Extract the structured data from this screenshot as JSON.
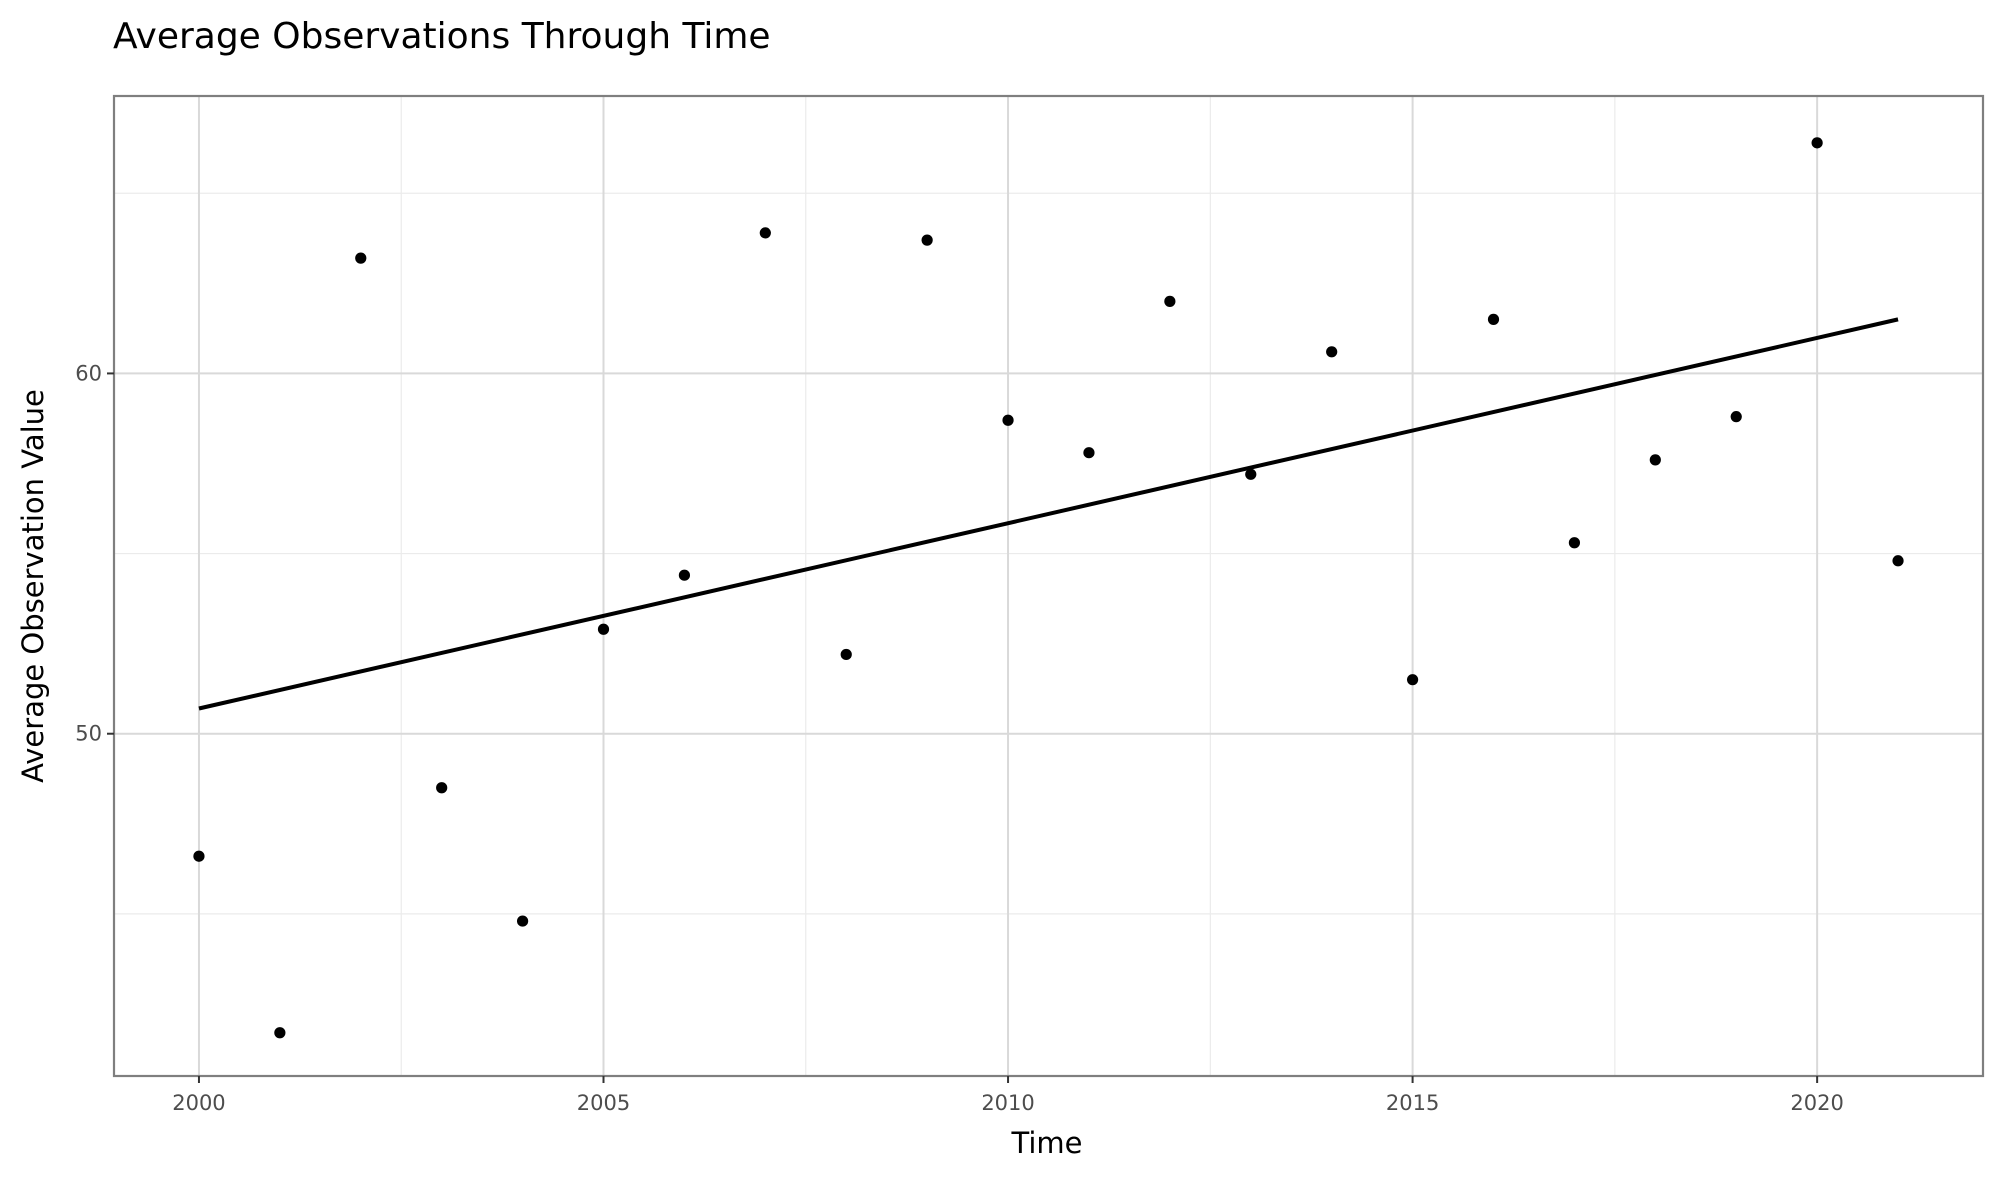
{
  "chart_data": {
    "type": "scatter",
    "title": "Average Observations Through Time",
    "xlabel": "Time",
    "ylabel": "Average Observation Value",
    "xlim": [
      1998.95,
      2022.05
    ],
    "ylim": [
      40.5,
      67.7
    ],
    "x_ticks": [
      2000,
      2005,
      2010,
      2015,
      2020
    ],
    "x_tick_labels": [
      "2000",
      "2005",
      "2010",
      "2015",
      "2020"
    ],
    "x_minor_ticks": [
      2002.5,
      2007.5,
      2012.5,
      2017.5
    ],
    "y_ticks": [
      50,
      60
    ],
    "y_tick_labels": [
      "50",
      "60"
    ],
    "y_minor_ticks": [
      45,
      55,
      65
    ],
    "grid": true,
    "legend": "none",
    "series": [
      {
        "kind": "points",
        "color": "#000000",
        "x": [
          2000,
          2001,
          2002,
          2003,
          2004,
          2005,
          2006,
          2007,
          2008,
          2009,
          2010,
          2011,
          2012,
          2013,
          2014,
          2015,
          2016,
          2017,
          2018,
          2019,
          2020,
          2021
        ],
        "y": [
          46.6,
          41.7,
          63.2,
          48.5,
          44.8,
          52.9,
          54.4,
          63.9,
          52.2,
          63.7,
          58.7,
          57.8,
          62.0,
          57.2,
          60.6,
          51.5,
          61.5,
          55.3,
          57.6,
          58.8,
          66.4,
          54.8
        ]
      },
      {
        "kind": "trend-line",
        "color": "#000000",
        "x": [
          2000,
          2021
        ],
        "y": [
          50.7,
          61.5
        ]
      }
    ]
  }
}
